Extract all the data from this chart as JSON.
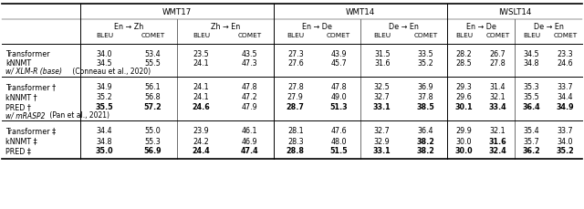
{
  "title_row": [
    "WMT17",
    "WMT14",
    "IWSLT14"
  ],
  "sub_header1": [
    "En → Zh",
    "Zh → En",
    "En → De",
    "De → En",
    "En → De",
    "De → En"
  ],
  "sub_header2": [
    "BLEU",
    "COMET",
    "BLEU",
    "COMET",
    "BLEU",
    "COMET",
    "BLEU",
    "COMET",
    "BLEU",
    "COMET",
    "BLEU",
    "COMET"
  ],
  "section0_rows": [
    [
      "Transformer",
      "34.0",
      "53.4",
      "23.5",
      "43.5",
      "27.3",
      "43.9",
      "31.5",
      "33.5",
      "28.2",
      "26.7",
      "34.5",
      "23.3"
    ],
    [
      "kNNMT",
      "34.5",
      "55.5",
      "24.1",
      "47.3",
      "27.6",
      "45.7",
      "31.6",
      "35.2",
      "28.5",
      "27.8",
      "34.8",
      "24.6"
    ]
  ],
  "section0_bold": [
    [
      false,
      false,
      false,
      false,
      false,
      false,
      false,
      false,
      false,
      false,
      false,
      false,
      false
    ],
    [
      false,
      false,
      false,
      false,
      false,
      false,
      false,
      false,
      false,
      false,
      false,
      false,
      false
    ]
  ],
  "section1_label_italic": "w/ XLM-R (base)",
  "section1_label_normal": " (Conneau et al., 2020)",
  "section1_rows": [
    [
      "Transformer †",
      "34.9",
      "56.1",
      "24.1",
      "47.8",
      "27.8",
      "47.8",
      "32.5",
      "36.9",
      "29.3",
      "31.4",
      "35.3",
      "33.7"
    ],
    [
      "kNNMT †",
      "35.2",
      "56.8",
      "24.1",
      "47.2",
      "27.9",
      "49.0",
      "32.7",
      "37.8",
      "29.6",
      "32.1",
      "35.5",
      "34.4"
    ],
    [
      "PRED †",
      "35.5",
      "57.2",
      "24.6",
      "47.9",
      "28.7",
      "51.3",
      "33.1",
      "38.5",
      "30.1",
      "33.4",
      "36.4",
      "34.9"
    ]
  ],
  "section1_bold": [
    [
      false,
      false,
      false,
      false,
      false,
      false,
      false,
      false,
      false,
      false,
      false,
      false,
      false
    ],
    [
      false,
      false,
      false,
      false,
      false,
      false,
      false,
      false,
      false,
      false,
      false,
      false,
      false
    ],
    [
      false,
      true,
      true,
      true,
      false,
      true,
      true,
      true,
      true,
      true,
      true,
      true,
      true
    ]
  ],
  "section2_label_italic": "w/ mRASP2",
  "section2_label_normal": " (Pan et al., 2021)",
  "section2_rows": [
    [
      "Transformer ‡",
      "34.4",
      "55.0",
      "23.9",
      "46.1",
      "28.1",
      "47.6",
      "32.7",
      "36.4",
      "29.9",
      "32.1",
      "35.4",
      "33.7"
    ],
    [
      "kNNMT ‡",
      "34.8",
      "55.3",
      "24.2",
      "46.9",
      "28.3",
      "48.0",
      "32.9",
      "38.2",
      "30.0",
      "31.6",
      "35.7",
      "34.0"
    ],
    [
      "PRED ‡",
      "35.0",
      "56.9",
      "24.4",
      "47.4",
      "28.8",
      "51.5",
      "33.1",
      "38.2",
      "30.0",
      "32.4",
      "36.2",
      "35.2"
    ]
  ],
  "section2_bold": [
    [
      false,
      false,
      false,
      false,
      false,
      false,
      false,
      false,
      false,
      false,
      false,
      false,
      false
    ],
    [
      false,
      false,
      false,
      false,
      false,
      false,
      false,
      false,
      true,
      false,
      true,
      false,
      false
    ],
    [
      false,
      true,
      true,
      true,
      true,
      true,
      true,
      true,
      true,
      true,
      true,
      true,
      true
    ]
  ],
  "bg_color": "#ffffff"
}
